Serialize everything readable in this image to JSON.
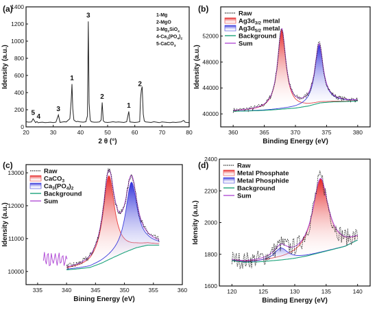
{
  "chart_data": [
    {
      "panel": "(a)",
      "type": "line",
      "xlabel": "2 θ (°)",
      "ylabel": "Idensity (a.u.)",
      "xlim": [
        20,
        80
      ],
      "ylim": [
        0,
        1400
      ],
      "xticks": [
        20,
        30,
        40,
        50,
        60,
        70,
        80
      ],
      "yticks": [
        0,
        200,
        400,
        600,
        800,
        1000,
        1200,
        1400
      ],
      "color": "#222222",
      "series": [
        {
          "x": [
            20,
            21,
            22,
            22.6,
            23.5,
            24,
            24.5,
            25,
            26,
            27,
            28,
            29,
            30,
            31,
            31.9,
            32.5,
            33,
            34,
            34.8,
            35.4,
            36.1,
            36.6,
            36.9,
            37.2,
            37.6,
            38,
            38.5,
            39,
            39.5,
            40,
            41,
            42,
            42.6,
            42.9,
            43.2,
            43.6,
            44,
            45,
            46,
            47,
            47.6,
            48,
            48.4,
            49,
            50,
            51,
            52,
            53,
            54,
            55,
            56,
            57,
            57.8,
            58.2,
            59,
            60,
            61,
            61.8,
            62.1,
            62.4,
            62.7,
            63.1,
            63.5,
            64,
            65,
            66,
            67,
            68,
            69,
            70,
            71,
            72,
            73,
            74,
            75,
            76,
            77,
            77.6,
            78,
            78.5,
            79,
            80
          ],
          "y": [
            60,
            55,
            58,
            95,
            50,
            62,
            48,
            52,
            55,
            50,
            52,
            55,
            50,
            55,
            140,
            52,
            55,
            60,
            58,
            75,
            95,
            300,
            500,
            210,
            80,
            70,
            60,
            65,
            60,
            58,
            55,
            60,
            130,
            1230,
            280,
            80,
            60,
            55,
            55,
            58,
            80,
            285,
            70,
            55,
            52,
            55,
            60,
            55,
            58,
            55,
            52,
            60,
            180,
            58,
            55,
            52,
            55,
            60,
            330,
            430,
            470,
            150,
            70,
            58,
            55,
            52,
            60,
            55,
            50,
            58,
            55,
            52,
            50,
            55,
            52,
            55,
            58,
            70,
            75,
            55,
            52,
            50
          ]
        }
      ],
      "peak_labels": [
        {
          "text": "5",
          "x": 22.6,
          "y": 140
        },
        {
          "text": "4",
          "x": 24.6,
          "y": 95
        },
        {
          "text": "3",
          "x": 31.9,
          "y": 185
        },
        {
          "text": "1",
          "x": 36.9,
          "y": 545
        },
        {
          "text": "3",
          "x": 42.9,
          "y": 1275
        },
        {
          "text": "2",
          "x": 48.0,
          "y": 330
        },
        {
          "text": "1",
          "x": 57.8,
          "y": 225
        },
        {
          "text": "2",
          "x": 61.9,
          "y": 475
        }
      ],
      "legend": [
        "1-Mg",
        "2-MgO",
        "3-Mg₂SiO₄",
        "4-Ca₃(PO₄)₂",
        "5-CaCO₃"
      ]
    },
    {
      "panel": "(b)",
      "type": "line",
      "xlabel": "Binding Energy (eV)",
      "ylabel": "Idensity (a.u.)",
      "xlim": [
        358,
        382
      ],
      "ylim": [
        38000,
        56500
      ],
      "xticks": [
        360,
        365,
        370,
        375,
        380
      ],
      "yticks": [
        40000,
        44000,
        48000,
        52000
      ],
      "legend": [
        "Raw",
        "Ag3d3/2 metal",
        "Ag3d5/2 metal",
        "Background",
        "Sum"
      ],
      "peaks": [
        {
          "name": "Ag3d3/2 metal",
          "center": 367.8,
          "width": 0.8,
          "height": 12300,
          "color": "#e83a3a"
        },
        {
          "name": "Ag3d5/2 metal",
          "center": 373.8,
          "width": 0.8,
          "height": 9000,
          "color": "#3b3bdc"
        }
      ],
      "background": {
        "x": [
          360,
          362,
          364,
          366,
          368,
          370,
          372,
          374,
          376,
          378,
          380
        ],
        "y": [
          40400,
          40450,
          40500,
          40600,
          40750,
          40900,
          41200,
          41700,
          41850,
          41900,
          42000
        ]
      },
      "noise": 380
    },
    {
      "panel": "(c)",
      "type": "line",
      "xlabel": "Bining Energy (eV)",
      "ylabel": "Idensity (a.u.)",
      "xlim": [
        333,
        360
      ],
      "ylim": [
        9600,
        13250
      ],
      "xticks": [
        335,
        340,
        345,
        350,
        355,
        360
      ],
      "yticks": [
        10000,
        11000,
        12000,
        13000
      ],
      "legend": [
        "Raw",
        "CaCO3",
        "Ca3(PO4)2",
        "Background",
        "Sum"
      ],
      "peaks": [
        {
          "name": "CaCO3",
          "center": 347.3,
          "width": 1.2,
          "height": 2550,
          "color": "#e83a3a"
        },
        {
          "name": "Ca3(PO4)2",
          "center": 351.2,
          "width": 1.2,
          "height": 2050,
          "color": "#3b3bdc"
        }
      ],
      "background": {
        "x": [
          340,
          342,
          344,
          346,
          348,
          350,
          352,
          354,
          356
        ],
        "y": [
          10050,
          10080,
          10120,
          10250,
          10420,
          10580,
          10720,
          10800,
          10800
        ]
      },
      "noise": 90
    },
    {
      "panel": "(d)",
      "type": "line",
      "xlabel": "Binding Energy (eV)",
      "ylabel": "Idensity (a.u.)",
      "xlim": [
        118,
        142
      ],
      "ylim": [
        1600,
        2400
      ],
      "xticks": [
        120,
        125,
        130,
        135,
        140
      ],
      "yticks": [
        1600,
        1800,
        2000,
        2200,
        2400
      ],
      "legend": [
        "Raw",
        "Metal Phosphate",
        "Metal Phosphide",
        "Background",
        "Sum"
      ],
      "peaks": [
        {
          "name": "Metal Phosphate",
          "center": 134.1,
          "width": 1.5,
          "height": 465,
          "color": "#e83a3a"
        },
        {
          "name": "Metal Phosphide",
          "center": 127.8,
          "width": 1.3,
          "height": 75,
          "color": "#3b3bdc"
        }
      ],
      "background": {
        "x": [
          120,
          122,
          124,
          126,
          128,
          130,
          132,
          134,
          136,
          138,
          140
        ],
        "y": [
          1760,
          1750,
          1752,
          1758,
          1765,
          1775,
          1790,
          1810,
          1830,
          1850,
          1890
        ]
      },
      "noise": 55
    }
  ]
}
